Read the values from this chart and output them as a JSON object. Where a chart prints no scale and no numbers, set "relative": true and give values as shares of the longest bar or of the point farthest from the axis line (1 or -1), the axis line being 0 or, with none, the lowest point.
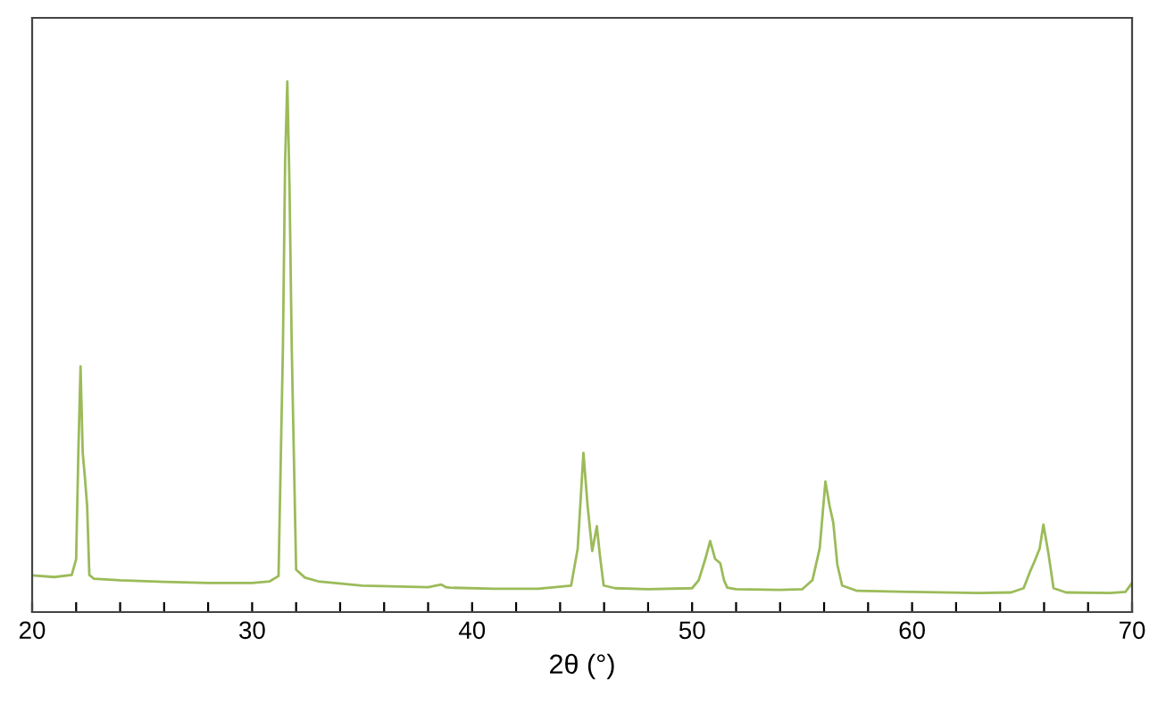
{
  "chart_data": {
    "type": "line",
    "relative": true,
    "xlabel": "2θ (°)",
    "xlim": [
      20,
      70
    ],
    "xticks": [
      20,
      {
        "value": 22,
        "label": null
      },
      {
        "value": 24,
        "label": null
      },
      {
        "value": 26,
        "label": null
      },
      {
        "value": 28,
        "label": null
      },
      30,
      {
        "value": 32,
        "label": null
      },
      {
        "value": 34,
        "label": null
      },
      {
        "value": 36,
        "label": null
      },
      {
        "value": 38,
        "label": null
      },
      40,
      {
        "value": 42,
        "label": null
      },
      {
        "value": 44,
        "label": null
      },
      {
        "value": 46,
        "label": null
      },
      {
        "value": 48,
        "label": null
      },
      50,
      {
        "value": 52,
        "label": null
      },
      {
        "value": 54,
        "label": null
      },
      {
        "value": 56,
        "label": null
      },
      {
        "value": 58,
        "label": null
      },
      60,
      {
        "value": 62,
        "label": null
      },
      {
        "value": 64,
        "label": null
      },
      {
        "value": 66,
        "label": null
      },
      {
        "value": 68,
        "label": null
      },
      70
    ],
    "grid": false,
    "marker": "none",
    "line_style": "solid",
    "series": [
      {
        "color": "#9bbb59",
        "x": [
          20,
          21,
          21.8,
          22.0,
          22.1,
          22.2,
          22.3,
          22.4,
          22.5,
          22.6,
          22.8,
          24,
          26,
          28,
          30,
          30.8,
          31.2,
          31.4,
          31.5,
          31.6,
          31.7,
          31.8,
          32.0,
          32.4,
          33,
          35,
          38,
          38.6,
          38.8,
          39,
          41,
          43,
          44.5,
          44.8,
          45.06,
          45.25,
          45.46,
          45.67,
          45.8,
          45.98,
          46.5,
          48,
          50.0,
          50.3,
          50.6,
          50.82,
          51.05,
          51.28,
          51.45,
          51.6,
          52,
          54,
          55.0,
          55.47,
          55.8,
          56.06,
          56.25,
          56.42,
          56.6,
          56.82,
          57.5,
          60,
          63,
          64.5,
          65.07,
          65.35,
          65.56,
          65.8,
          65.97,
          66.2,
          66.43,
          67,
          69,
          69.7,
          70
        ],
        "values": [
          0.069,
          0.066,
          0.07,
          0.1,
          0.3,
          0.463,
          0.3,
          0.253,
          0.2,
          0.07,
          0.063,
          0.06,
          0.057,
          0.055,
          0.055,
          0.058,
          0.068,
          0.5,
          0.85,
          1.0,
          0.8,
          0.5,
          0.08,
          0.065,
          0.058,
          0.05,
          0.047,
          0.052,
          0.047,
          0.046,
          0.044,
          0.044,
          0.05,
          0.12,
          0.3,
          0.2,
          0.115,
          0.162,
          0.11,
          0.05,
          0.045,
          0.043,
          0.045,
          0.06,
          0.1,
          0.134,
          0.1,
          0.092,
          0.06,
          0.046,
          0.043,
          0.042,
          0.043,
          0.06,
          0.12,
          0.246,
          0.2,
          0.168,
          0.09,
          0.05,
          0.04,
          0.038,
          0.036,
          0.037,
          0.045,
          0.075,
          0.095,
          0.12,
          0.165,
          0.11,
          0.045,
          0.037,
          0.036,
          0.038,
          0.055
        ]
      }
    ]
  }
}
